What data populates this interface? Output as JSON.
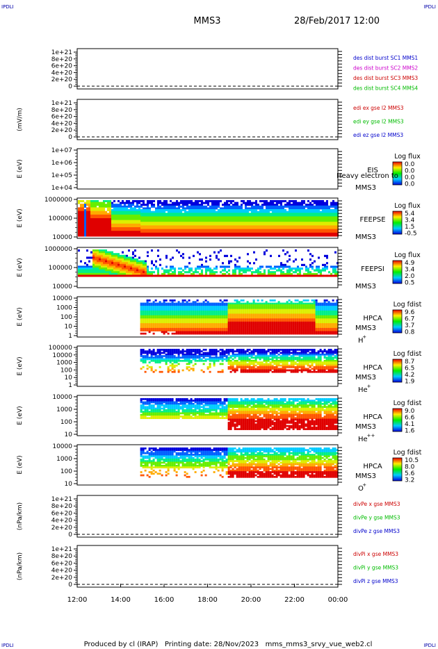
{
  "header": {
    "corner_left_top": "IPDLI",
    "corner_right_top": "IPDLI",
    "spacecraft": "MMS3",
    "date": "28/Feb/2017 12:00"
  },
  "footer": {
    "corner_left_bottom": "IPDLI",
    "corner_right_bottom": "IPDLI",
    "text": "Produced by cl (IRAP)   Printing date: 28/Nov/2023   mms_mms3_srvy_vue_web2.cl"
  },
  "chart_data": {
    "type": "heatmap",
    "x_ticks": [
      "12:00",
      "14:00",
      "16:00",
      "18:00",
      "20:00",
      "22:00",
      "00:00"
    ],
    "panels": [
      {
        "id": "des",
        "kind": "line",
        "ylabel": "",
        "ticks": [
          "1e+21",
          "8e+20",
          "6e+20",
          "4e+20",
          "2e+20",
          "0"
        ],
        "labels": [
          {
            "text": "des dist burst SC1 MMS1",
            "color": "#0000cc"
          },
          {
            "text": "des dist burst SC2 MMS2",
            "color": "#cc00cc"
          },
          {
            "text": "des dist burst SC3 MMS3",
            "color": "#cc0000"
          },
          {
            "text": "des dist burst SC4 MMS4",
            "color": "#00bb00"
          }
        ]
      },
      {
        "id": "edi",
        "kind": "line",
        "ylabel": "(mV/m)",
        "ticks": [
          "1e+21",
          "8e+20",
          "6e+20",
          "4e+20",
          "2e+20",
          "0"
        ],
        "labels": [
          {
            "text": "edi ex gse l2 MMS3",
            "color": "#cc0000"
          },
          {
            "text": "edi ey gse l2 MMS3",
            "color": "#00bb00"
          },
          {
            "text": "edi ez gse l2 MMS3",
            "color": "#0000cc"
          }
        ]
      },
      {
        "id": "eis",
        "kind": "spec",
        "ylabel": "E (eV)",
        "ticks": [
          "1e+07",
          "1e+06",
          "1e+05",
          "1e+04"
        ],
        "inst": [
          "EIS",
          "MMS3"
        ],
        "species": "",
        "overlay": "Heavy electron to",
        "cb_title": "Log flux",
        "cb_ticks": [
          "0.0",
          "0.0",
          "0.0",
          "0.0"
        ]
      },
      {
        "id": "feepse",
        "kind": "spec",
        "ylabel": "E (eV)",
        "ticks": [
          "1000000",
          "100000",
          "10000"
        ],
        "inst": [
          "FEEPSE",
          "MMS3"
        ],
        "species": "",
        "cb_title": "Log flux",
        "cb_ticks": [
          "5.4",
          "3.4",
          "1.5",
          "-0.5"
        ]
      },
      {
        "id": "feepsi",
        "kind": "spec",
        "ylabel": "E (eV)",
        "ticks": [
          "1000000",
          "100000",
          "10000"
        ],
        "inst": [
          "FEEPSI",
          "MMS3"
        ],
        "species": "",
        "cb_title": "Log flux",
        "cb_ticks": [
          "4.9",
          "3.4",
          "2.0",
          "0.5"
        ]
      },
      {
        "id": "hpca_h",
        "kind": "spec",
        "ylabel": "E (eV)",
        "ticks": [
          "10000",
          "1000",
          "100",
          "10",
          "1"
        ],
        "inst": [
          "HPCA",
          "MMS3"
        ],
        "species": "H",
        "species_sup": "+",
        "cb_title": "Log fdist",
        "cb_ticks": [
          "9.6",
          "6.7",
          "3.7",
          "0.8"
        ]
      },
      {
        "id": "hpca_he",
        "kind": "spec",
        "ylabel": "E (eV)",
        "ticks": [
          "100000",
          "10000",
          "1000",
          "100",
          "10",
          "1"
        ],
        "inst": [
          "HPCA",
          "MMS3"
        ],
        "species": "He",
        "species_sup": "+",
        "cb_title": "Log fdist",
        "cb_ticks": [
          "8.7",
          "6.5",
          "4.2",
          "1.9"
        ]
      },
      {
        "id": "hpca_hepp",
        "kind": "spec",
        "ylabel": "E (eV)",
        "ticks": [
          "10000",
          "1000",
          "100",
          "10"
        ],
        "inst": [
          "HPCA",
          "MMS3"
        ],
        "species": "He",
        "species_sup": "++",
        "cb_title": "Log fdist",
        "cb_ticks": [
          "9.0",
          "6.6",
          "4.1",
          "1.6"
        ]
      },
      {
        "id": "hpca_o",
        "kind": "spec",
        "ylabel": "E (eV)",
        "ticks": [
          "10000",
          "1000",
          "100",
          "10"
        ],
        "inst": [
          "HPCA",
          "MMS3"
        ],
        "species": "O",
        "species_sup": "+",
        "cb_title": "Log fdist",
        "cb_ticks": [
          "10.5",
          "8.0",
          "5.6",
          "3.2"
        ]
      },
      {
        "id": "divpe",
        "kind": "line",
        "ylabel": "(nPa/km)",
        "ticks": [
          "1e+21",
          "8e+20",
          "6e+20",
          "4e+20",
          "2e+20",
          "0"
        ],
        "labels": [
          {
            "text": "divPe x gse MMS3",
            "color": "#cc0000"
          },
          {
            "text": "divPe y gse MMS3",
            "color": "#00bb00"
          },
          {
            "text": "divPe z gse MMS3",
            "color": "#0000cc"
          }
        ]
      },
      {
        "id": "divpi",
        "kind": "line",
        "ylabel": "(nPa/km)",
        "ticks": [
          "1e+21",
          "8e+20",
          "6e+20",
          "4e+20",
          "2e+20",
          "0"
        ],
        "labels": [
          {
            "text": "divPi x gse MMS3",
            "color": "#cc0000"
          },
          {
            "text": "divPi y gse MMS3",
            "color": "#00bb00"
          },
          {
            "text": "divPi z gse MMS3",
            "color": "#0000cc"
          }
        ]
      }
    ]
  }
}
